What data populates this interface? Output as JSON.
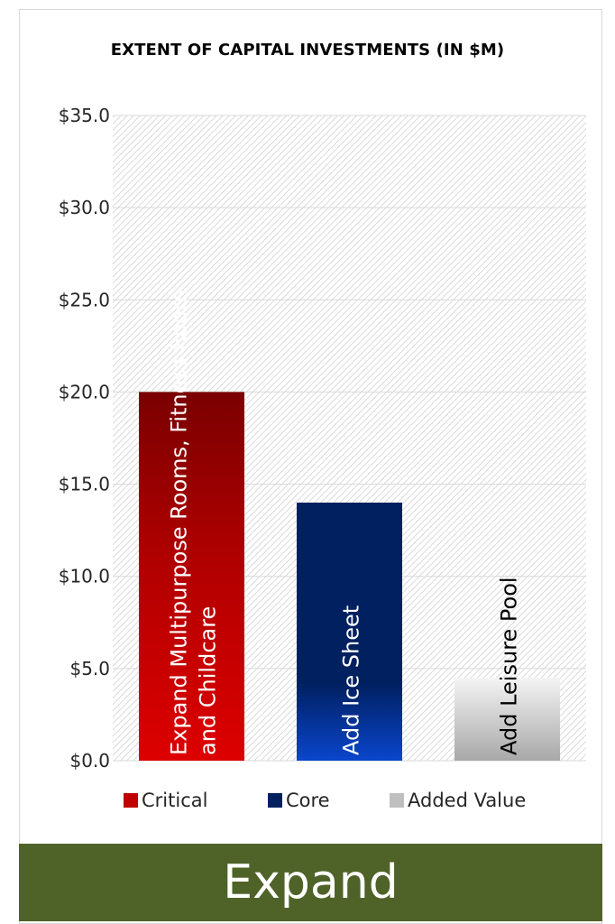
{
  "chart_data": {
    "type": "bar",
    "title": "EXTENT OF CAPITAL INVESTMENTS (IN $M)",
    "categories": [
      "Expand Multipurpose Rooms, Fitness Room and Childcare",
      "Add Ice Sheet",
      "Add Leisure Pool"
    ],
    "bar_labels": [
      [
        "Expand Multipurpose Rooms, Fitness Room",
        "and Childcare"
      ],
      [
        "Add Ice Sheet"
      ],
      [
        "Add Leisure Pool"
      ]
    ],
    "values": [
      20.0,
      14.0,
      4.5
    ],
    "bar_series": [
      "Critical",
      "Core",
      "Added Value"
    ],
    "series": [
      {
        "name": "Critical",
        "color": "#c00000"
      },
      {
        "name": "Core",
        "color": "#002060"
      },
      {
        "name": "Added Value",
        "color": "#bfbfbf"
      }
    ],
    "ylim": [
      0,
      35
    ],
    "yticks": [
      0,
      5,
      10,
      15,
      20,
      25,
      30,
      35
    ],
    "ytick_labels": [
      "$0.0",
      "$5.0",
      "$10.0",
      "$15.0",
      "$20.0",
      "$25.0",
      "$30.0",
      "$35.0"
    ],
    "grid": true,
    "legend_position": "bottom"
  },
  "footer": {
    "label": "Expand",
    "color": "#4f6228"
  }
}
